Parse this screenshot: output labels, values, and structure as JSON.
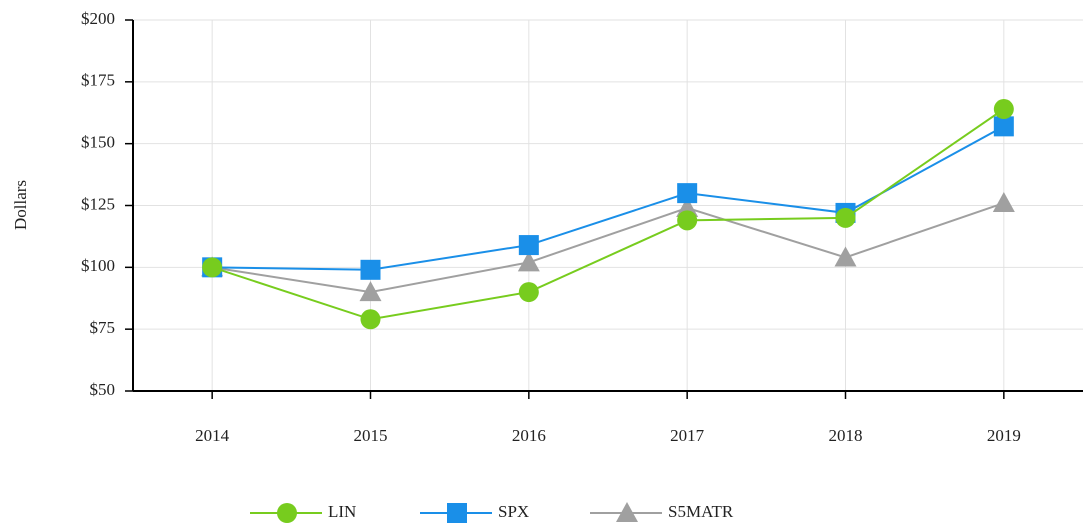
{
  "chart_data": {
    "type": "line",
    "y_label": "Dollars",
    "categories": [
      "2014",
      "2015",
      "2016",
      "2017",
      "2018",
      "2019"
    ],
    "series": [
      {
        "name": "LIN",
        "color": "#77cc1e",
        "marker": "circle",
        "values": [
          100,
          79,
          90,
          119,
          120,
          164
        ]
      },
      {
        "name": "SPX",
        "color": "#1a8fe8",
        "marker": "square",
        "values": [
          100,
          99,
          109,
          130,
          122,
          157
        ]
      },
      {
        "name": "S5MATR",
        "color": "#a0a0a0",
        "marker": "triangle",
        "values": [
          100,
          90,
          102,
          124,
          104,
          126
        ]
      }
    ],
    "ylim": [
      50,
      200
    ],
    "yticks": [
      {
        "value": 50,
        "label": "$50"
      },
      {
        "value": 75,
        "label": "$75"
      },
      {
        "value": 100,
        "label": "$100"
      },
      {
        "value": 125,
        "label": "$125"
      },
      {
        "value": 150,
        "label": "$150"
      },
      {
        "value": 175,
        "label": "$175"
      },
      {
        "value": 200,
        "label": "$200"
      }
    ],
    "grid": true,
    "legend": "bottom"
  }
}
